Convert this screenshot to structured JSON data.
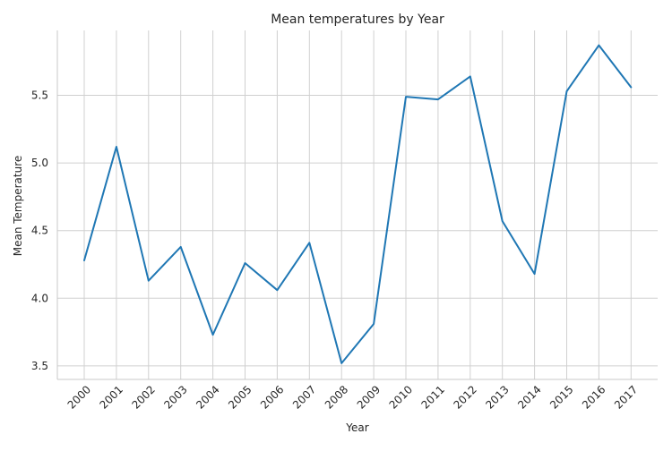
{
  "chart_data": {
    "type": "line",
    "title": "Mean temperatures by Year",
    "xlabel": "Year",
    "ylabel": "Mean Temperature",
    "categories": [
      "2000",
      "2001",
      "2002",
      "2003",
      "2004",
      "2005",
      "2006",
      "2007",
      "2008",
      "2009",
      "2010",
      "2011",
      "2012",
      "2013",
      "2014",
      "2015",
      "2016",
      "2017"
    ],
    "series": [
      {
        "values": [
          4.28,
          5.12,
          4.13,
          4.38,
          3.73,
          4.26,
          4.06,
          4.41,
          3.52,
          3.81,
          5.49,
          5.47,
          5.64,
          4.57,
          4.18,
          5.53,
          5.87,
          5.56
        ],
        "color": "#1f77b4"
      }
    ],
    "yticks": [
      3.5,
      4.0,
      4.5,
      5.0,
      5.5
    ],
    "ytick_labels": [
      "3.5",
      "4.0",
      "4.5",
      "5.0",
      "5.5"
    ],
    "ylim": [
      3.4,
      5.98
    ],
    "grid": true
  }
}
